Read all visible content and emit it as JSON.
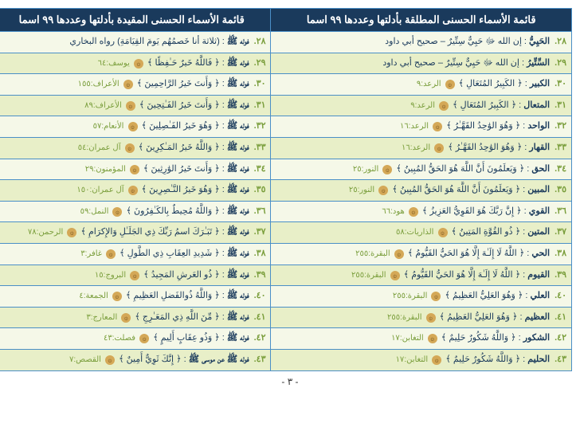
{
  "headers": {
    "right": "قائمة الأسماء الحسنى المطلقة بأدلتها وعددها ٩٩ اسما",
    "left": "قائمة الأسماء الحسنى المقيدة بأدلتها وعددها ٩٩ اسما"
  },
  "rows": [
    {
      "n": "٢٨",
      "rname": "الحَيِيُّ",
      "rverse": ": إن الله ﷻ حَيِيٌّ سِتِّيرٌ – صحيح أبي داود",
      "lname": "فوله ﷺ",
      "lverse": ": (ثلاثة أنا خَصمُهُم يَومَ القِيَامَةِ) رواه البخاري"
    },
    {
      "n": "٢٩",
      "rname": "السِّتِّيرُ",
      "rverse": ": إن الله ﷻ حَيِيٌّ سِتِّيرٌ – صحيح أبي داود",
      "lname": "فوله ﷺ",
      "lverse": ": ﴿ فَاللَّهُ خَيرٌ حَـٰفِظًا ﴾",
      "lref": "يوسف:٦٤"
    },
    {
      "n": "٣٠",
      "rname": "الكبير",
      "rverse": ": ﴿ الكَبِيرُ المُتَعَالِ ﴾",
      "rref": "الرعد:٩",
      "lname": "فوله ﷺ",
      "lverse": ": ﴿ وَأَنتَ خَيرُ الرَّاحِمِينَ ﴾",
      "lref": "الأعراف:١٥٥"
    },
    {
      "n": "٣١",
      "rname": "المتعال",
      "rverse": ": ﴿ الكَبِيرُ المُتَعَالِ ﴾",
      "rref": "الرعد:٩",
      "lname": "فوله ﷺ",
      "lverse": ": ﴿ وَأَنتَ خَيرُ الفَـٰتِحِينَ ﴾",
      "lref": "الأعراف:٨٩"
    },
    {
      "n": "٣٢",
      "rname": "الواحد",
      "rverse": ": ﴿ وَهُوَ الوَٰحِدُ القَهَّـٰرُ ﴾",
      "rref": "الرعد:١٦",
      "lname": "فوله ﷺ",
      "lverse": ": ﴿ وَهُوَ خَيرُ الفَـٰصِلِينَ ﴾",
      "lref": "الأنعام:٥٧"
    },
    {
      "n": "٣٣",
      "rname": "القهار",
      "rverse": ": ﴿ وَهُوَ الوَٰحِدُ القَهَّـٰرُ ﴾",
      "rref": "الرعد:١٦",
      "lname": "فوله ﷺ",
      "lverse": ": ﴿ وَاللَّهُ خَيرُ المَـٰكِرِينَ ﴾",
      "lref": "آل عمران:٥٤"
    },
    {
      "n": "٣٤",
      "rname": "الحق",
      "rverse": ": ﴿ وَيَعلَمُونَ أَنَّ اللَّهَ هُوَ الحَقُّ المُبِينُ ﴾",
      "rref": "النور:٢٥",
      "lname": "فوله ﷺ",
      "lverse": ": ﴿ وَأَنتَ خَيرُ الوَٰرِثِينَ ﴾",
      "lref": "المؤمنون:٢٩"
    },
    {
      "n": "٣٥",
      "rname": "المبين",
      "rverse": ": ﴿ وَيَعلَمُونَ أَنَّ اللَّهَ هُوَ الحَقُّ المُبِينُ ﴾",
      "rref": "النور:٢٥",
      "lname": "فوله ﷺ",
      "lverse": ": ﴿ وَهُوَ خَيرُ النَّـٰصِرِينَ ﴾",
      "lref": "آل عمران:١٥٠"
    },
    {
      "n": "٣٦",
      "rname": "القوي",
      "rverse": ": ﴿ إِنَّ رَبَّكَ هُوَ القَوِيُّ العَزِيزُ ﴾",
      "rref": "هود:٦٦",
      "lname": "فوله ﷺ",
      "lverse": ": ﴿ وَاللَّهُ مُحِيطٌ بِالكَـٰفِرُونَ ﴾",
      "lref": "النمل:٥٩"
    },
    {
      "n": "٣٧",
      "rname": "المتين",
      "rverse": ": ﴿ ذُو القُوَّةِ المَتِينُ ﴾",
      "rref": "الذاريات:٥٨",
      "lname": "فوله ﷺ",
      "lverse": ": ﴿ تَبَـٰرَكَ اسمُ رَبِّكَ ذِي الجَلَـٰلِ وَالإِكرَامِ ﴾",
      "lref": "الرحمن:٧٨"
    },
    {
      "n": "٣٨",
      "rname": "الحي",
      "rverse": ": ﴿ اللَّهُ لَا إِلَـٰهَ إِلَّا هُوَ الحَيُّ القَيُّومُ ﴾",
      "rref": "البقرة:٢٥٥",
      "lname": "فوله ﷺ",
      "lverse": ": ﴿ شَدِيدِ العِقَابِ ذِي الطَّولِ ﴾",
      "lref": "غافر:٣"
    },
    {
      "n": "٣٩",
      "rname": "القيوم",
      "rverse": ": ﴿ اللَّهُ لَا إِلَـٰهَ إِلَّا هُوَ الحَيُّ القَيُّومُ ﴾",
      "rref": "البقرة:٢٥٥",
      "lname": "فوله ﷺ",
      "lverse": ": ﴿ ذُو العَرشِ المَجِيدُ ﴾",
      "lref": "البروج:١٥"
    },
    {
      "n": "٤٠",
      "rname": "العلي",
      "rverse": ": ﴿ وَهُوَ العَلِيُّ العَظِيمُ ﴾",
      "rref": "البقرة:٢٥٥",
      "lname": "فوله ﷺ",
      "lverse": ": ﴿ وَاللَّهُ ذُوالفَضلِ العَظِيمِ ﴾",
      "lref": "الجمعة:٤"
    },
    {
      "n": "٤١",
      "rname": "العظيم",
      "rverse": ": ﴿ وَهُوَ العَلِيُّ العَظِيمُ ﴾",
      "rref": "البقرة:٢٥٥",
      "lname": "فوله ﷺ",
      "lverse": ": ﴿ مِّنَ اللَّهِ ذِي المَعَـٰرِجِ ﴾",
      "lref": "المعارج:٣"
    },
    {
      "n": "٤٢",
      "rname": "الشكور",
      "rverse": ": ﴿ وَاللَّهُ شَكُورٌ حَلِيمٌ ﴾",
      "rref": "التغابن:١٧",
      "lname": "فوله ﷺ",
      "lverse": ": ﴿ وَذُو عِقَابٍ أَلِيمٍ ﴾",
      "lref": "فصلت:٤٣"
    },
    {
      "n": "٤٣",
      "rname": "الحليم",
      "rverse": ": ﴿ وَاللَّهُ شَكُورٌ حَلِيمٌ ﴾",
      "rref": "التغابن:١٧",
      "lname": "فوله ﷺ عن موسى ﷺ",
      "lverse": ": ﴿ إِنَّكَ ثَوِيٌّ أَمِينٌ ﴾",
      "lref": "القصص:٧"
    }
  ],
  "pageNum": "- ٣ -"
}
